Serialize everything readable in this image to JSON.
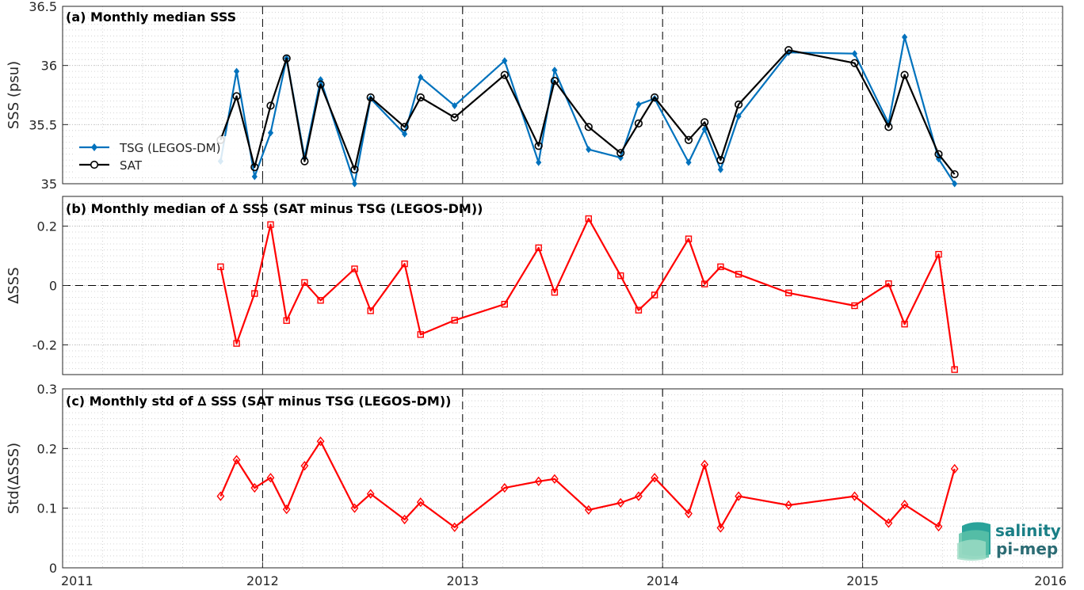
{
  "chart_data": [
    {
      "panel": "a",
      "type": "line",
      "title": "(a) Monthly median SSS",
      "xlabel": "",
      "ylabel": "SSS (psu)",
      "xlim": [
        2011,
        2016
      ],
      "ylim": [
        35,
        36.5
      ],
      "xticks": [
        "2011",
        "2012",
        "2013",
        "2014",
        "2015",
        "2016"
      ],
      "yticks": [
        "35",
        "35.5",
        "36",
        "36.5"
      ],
      "grid": true,
      "legend_position": "middle-left",
      "x": [
        2011.79,
        2011.87,
        2011.96,
        2012.04,
        2012.12,
        2012.21,
        2012.29,
        2012.46,
        2012.54,
        2012.71,
        2012.79,
        2012.96,
        2013.21,
        2013.38,
        2013.46,
        2013.63,
        2013.79,
        2013.88,
        2013.96,
        2014.13,
        2014.21,
        2014.29,
        2014.38,
        2014.63,
        2014.96,
        2015.13,
        2015.21,
        2015.38,
        2015.46
      ],
      "series": [
        {
          "name": "TSG (LEGOS-DM)",
          "color": "#0072BD",
          "marker": "diamond-filled",
          "values": [
            35.19,
            35.95,
            35.06,
            35.43,
            36.06,
            35.22,
            35.88,
            35.0,
            35.72,
            35.42,
            35.9,
            35.66,
            36.04,
            35.18,
            35.96,
            35.29,
            35.22,
            35.67,
            35.72,
            35.18,
            35.46,
            35.12,
            35.57,
            36.11,
            36.1,
            35.51,
            36.24,
            35.21,
            35.0
          ]
        },
        {
          "name": "SAT",
          "color": "#000000",
          "marker": "circle-open",
          "values": [
            35.37,
            35.74,
            35.14,
            35.66,
            36.06,
            35.19,
            35.84,
            35.12,
            35.73,
            35.48,
            35.73,
            35.56,
            35.92,
            35.32,
            35.87,
            35.48,
            35.26,
            35.51,
            35.73,
            35.37,
            35.52,
            35.2,
            35.67,
            36.13,
            36.02,
            35.48,
            35.92,
            35.25,
            35.08
          ]
        }
      ]
    },
    {
      "panel": "b",
      "type": "line",
      "title": "(b) Monthly median of ∆ SSS (SAT minus TSG (LEGOS-DM))",
      "xlabel": "",
      "ylabel": "∆SSS",
      "xlim": [
        2011,
        2016
      ],
      "ylim": [
        -0.3,
        0.3
      ],
      "xticks": [
        "2011",
        "2012",
        "2013",
        "2014",
        "2015",
        "2016"
      ],
      "yticks": [
        "-0.2",
        "0",
        "0.2"
      ],
      "grid": true,
      "x": [
        2011.79,
        2011.87,
        2011.96,
        2012.04,
        2012.12,
        2012.21,
        2012.29,
        2012.46,
        2012.54,
        2012.71,
        2012.79,
        2012.96,
        2013.21,
        2013.38,
        2013.46,
        2013.63,
        2013.79,
        2013.88,
        2013.96,
        2014.13,
        2014.21,
        2014.29,
        2014.38,
        2014.63,
        2014.96,
        2015.13,
        2015.21,
        2015.38,
        2015.46
      ],
      "series": [
        {
          "name": "",
          "color": "#FF0000",
          "marker": "square-open",
          "values": [
            0.063,
            -0.195,
            -0.027,
            0.205,
            -0.118,
            0.01,
            -0.05,
            0.056,
            -0.085,
            0.073,
            -0.165,
            -0.117,
            -0.063,
            0.127,
            -0.023,
            0.225,
            0.033,
            -0.083,
            -0.032,
            0.157,
            0.005,
            0.063,
            0.038,
            -0.025,
            -0.068,
            0.006,
            -0.13,
            0.105,
            -0.283
          ]
        }
      ]
    },
    {
      "panel": "c",
      "type": "line",
      "title": "(c) Monthly std of ∆ SSS (SAT minus TSG (LEGOS-DM))",
      "xlabel": "",
      "ylabel": "Std(∆SSS)",
      "xlim": [
        2011,
        2016
      ],
      "ylim": [
        0,
        0.3
      ],
      "xticks": [
        "2011",
        "2012",
        "2013",
        "2014",
        "2015",
        "2016"
      ],
      "yticks": [
        "0",
        "0.1",
        "0.2",
        "0.3"
      ],
      "grid": true,
      "x": [
        2011.79,
        2011.87,
        2011.96,
        2012.04,
        2012.12,
        2012.21,
        2012.29,
        2012.46,
        2012.54,
        2012.71,
        2012.79,
        2012.96,
        2013.21,
        2013.38,
        2013.46,
        2013.63,
        2013.79,
        2013.88,
        2013.96,
        2014.13,
        2014.21,
        2014.29,
        2014.38,
        2014.63,
        2014.96,
        2015.13,
        2015.21,
        2015.38,
        2015.46
      ],
      "series": [
        {
          "name": "",
          "color": "#FF0000",
          "marker": "diamond-open",
          "values": [
            0.12,
            0.181,
            0.134,
            0.151,
            0.098,
            0.171,
            0.212,
            0.1,
            0.124,
            0.081,
            0.11,
            0.068,
            0.134,
            0.145,
            0.149,
            0.097,
            0.109,
            0.12,
            0.151,
            0.091,
            0.173,
            0.067,
            0.12,
            0.105,
            0.12,
            0.075,
            0.106,
            0.069,
            0.166
          ]
        }
      ]
    }
  ],
  "logo": {
    "line1": "salinity",
    "line2": "pi-mep"
  }
}
